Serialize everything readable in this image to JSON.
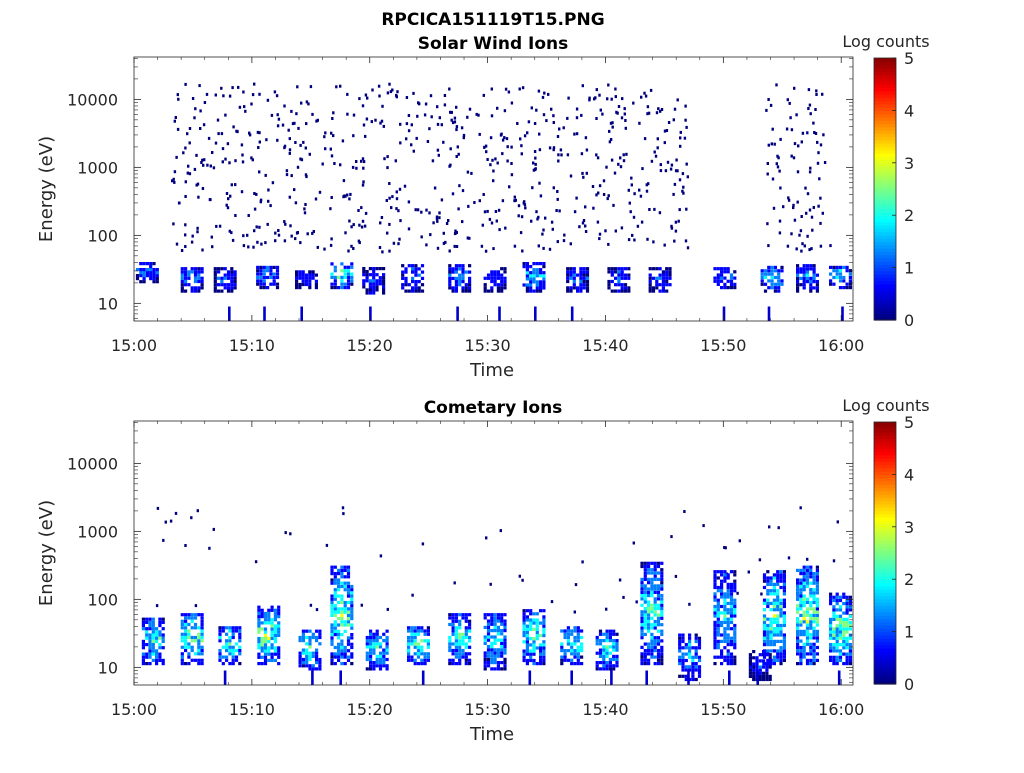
{
  "figure_title": "RPCICA151119T15.PNG",
  "colormap": [
    "#00007f",
    "#0000ff",
    "#007fff",
    "#00ffff",
    "#7fff7f",
    "#ffff00",
    "#ff7f00",
    "#ff0000",
    "#7f0000"
  ],
  "chart_data": [
    {
      "type": "heatmap",
      "title": "Solar Wind Ions",
      "xlabel": "Time",
      "ylabel": "Energy (eV)",
      "x_range": [
        "15:00",
        "16:01"
      ],
      "x_ticks": [
        "15:00",
        "15:10",
        "15:20",
        "15:30",
        "15:40",
        "15:50",
        "16:00"
      ],
      "y_scale": "log",
      "y_range": [
        5.5,
        42000
      ],
      "y_ticks": [
        "10",
        "100",
        "1000",
        "10000"
      ],
      "colorbar": {
        "label": "Log counts",
        "range": [
          0,
          5
        ],
        "ticks": [
          "0",
          "1",
          "2",
          "3",
          "4",
          "5"
        ]
      },
      "bands": [
        {
          "t": 1.0,
          "lo": 22,
          "hi": 45,
          "v": 1.5
        },
        {
          "t": 4.8,
          "lo": 16,
          "hi": 38,
          "v": 1.5
        },
        {
          "t": 7.6,
          "lo": 16,
          "hi": 38,
          "v": 1.2
        },
        {
          "t": 11.2,
          "lo": 18,
          "hi": 40,
          "v": 1.6
        },
        {
          "t": 14.5,
          "lo": 18,
          "hi": 34,
          "v": 1.1
        },
        {
          "t": 17.5,
          "lo": 18,
          "hi": 45,
          "v": 2.4
        },
        {
          "t": 20.2,
          "lo": 15,
          "hi": 38,
          "v": 1.2
        },
        {
          "t": 23.5,
          "lo": 16,
          "hi": 42,
          "v": 1.4
        },
        {
          "t": 27.5,
          "lo": 16,
          "hi": 42,
          "v": 1.6
        },
        {
          "t": 30.5,
          "lo": 16,
          "hi": 38,
          "v": 1.1
        },
        {
          "t": 33.8,
          "lo": 16,
          "hi": 45,
          "v": 2.0
        },
        {
          "t": 37.5,
          "lo": 16,
          "hi": 38,
          "v": 1.3
        },
        {
          "t": 41.0,
          "lo": 16,
          "hi": 38,
          "v": 1.2
        },
        {
          "t": 44.5,
          "lo": 16,
          "hi": 38,
          "v": 1.1
        },
        {
          "t": 50.0,
          "lo": 18,
          "hi": 38,
          "v": 1.4
        },
        {
          "t": 54.0,
          "lo": 16,
          "hi": 40,
          "v": 1.8
        },
        {
          "t": 57.0,
          "lo": 16,
          "hi": 42,
          "v": 1.5
        },
        {
          "t": 59.8,
          "lo": 18,
          "hi": 40,
          "v": 1.8
        }
      ],
      "scatter": {
        "t_from": 3,
        "t_to": 47,
        "lo": 60,
        "hi": 18000,
        "n": 700,
        "extra_t_from": 53.5,
        "extra_t_to": 59,
        "extra_n": 90
      }
    },
    {
      "type": "heatmap",
      "title": "Cometary Ions",
      "xlabel": "Time",
      "ylabel": "Energy (eV)",
      "x_range": [
        "15:00",
        "16:01"
      ],
      "x_ticks": [
        "15:00",
        "15:10",
        "15:20",
        "15:30",
        "15:40",
        "15:50",
        "16:00"
      ],
      "y_scale": "log",
      "y_range": [
        5.5,
        42000
      ],
      "y_ticks": [
        "10",
        "100",
        "1000",
        "10000"
      ],
      "colorbar": {
        "label": "Log counts",
        "range": [
          0,
          5
        ],
        "ticks": [
          "0",
          "1",
          "2",
          "3",
          "4",
          "5"
        ]
      },
      "bands": [
        {
          "t": 1.5,
          "lo": 12,
          "hi": 60,
          "v": 2.3
        },
        {
          "t": 4.8,
          "lo": 12,
          "hi": 70,
          "v": 2.6
        },
        {
          "t": 8.0,
          "lo": 12,
          "hi": 45,
          "v": 2.4
        },
        {
          "t": 11.3,
          "lo": 12,
          "hi": 90,
          "v": 2.8
        },
        {
          "t": 14.8,
          "lo": 10,
          "hi": 40,
          "v": 2.3
        },
        {
          "t": 17.5,
          "lo": 12,
          "hi": 350,
          "v": 2.5
        },
        {
          "t": 20.5,
          "lo": 10,
          "hi": 40,
          "v": 2.1
        },
        {
          "t": 24.0,
          "lo": 12,
          "hi": 45,
          "v": 2.4
        },
        {
          "t": 27.5,
          "lo": 12,
          "hi": 70,
          "v": 2.3
        },
        {
          "t": 30.5,
          "lo": 10,
          "hi": 70,
          "v": 2.0
        },
        {
          "t": 33.8,
          "lo": 12,
          "hi": 80,
          "v": 2.5
        },
        {
          "t": 37.0,
          "lo": 12,
          "hi": 45,
          "v": 2.3
        },
        {
          "t": 40.0,
          "lo": 10,
          "hi": 40,
          "v": 2.1
        },
        {
          "t": 43.8,
          "lo": 12,
          "hi": 400,
          "v": 2.3
        },
        {
          "t": 47.0,
          "lo": 7,
          "hi": 35,
          "v": 1.9
        },
        {
          "t": 50.0,
          "lo": 12,
          "hi": 300,
          "v": 2.0
        },
        {
          "t": 53.0,
          "lo": 7,
          "hi": 20,
          "v": 1.0
        },
        {
          "t": 54.2,
          "lo": 12,
          "hi": 300,
          "v": 2.6
        },
        {
          "t": 57.0,
          "lo": 12,
          "hi": 350,
          "v": 2.7
        },
        {
          "t": 59.8,
          "lo": 12,
          "hi": 140,
          "v": 2.6
        }
      ],
      "scatter": {
        "t_from": 1,
        "t_to": 60,
        "lo": 60,
        "hi": 2500,
        "n": 60,
        "extra_t_from": 0,
        "extra_t_to": 0,
        "extra_n": 0
      }
    }
  ]
}
